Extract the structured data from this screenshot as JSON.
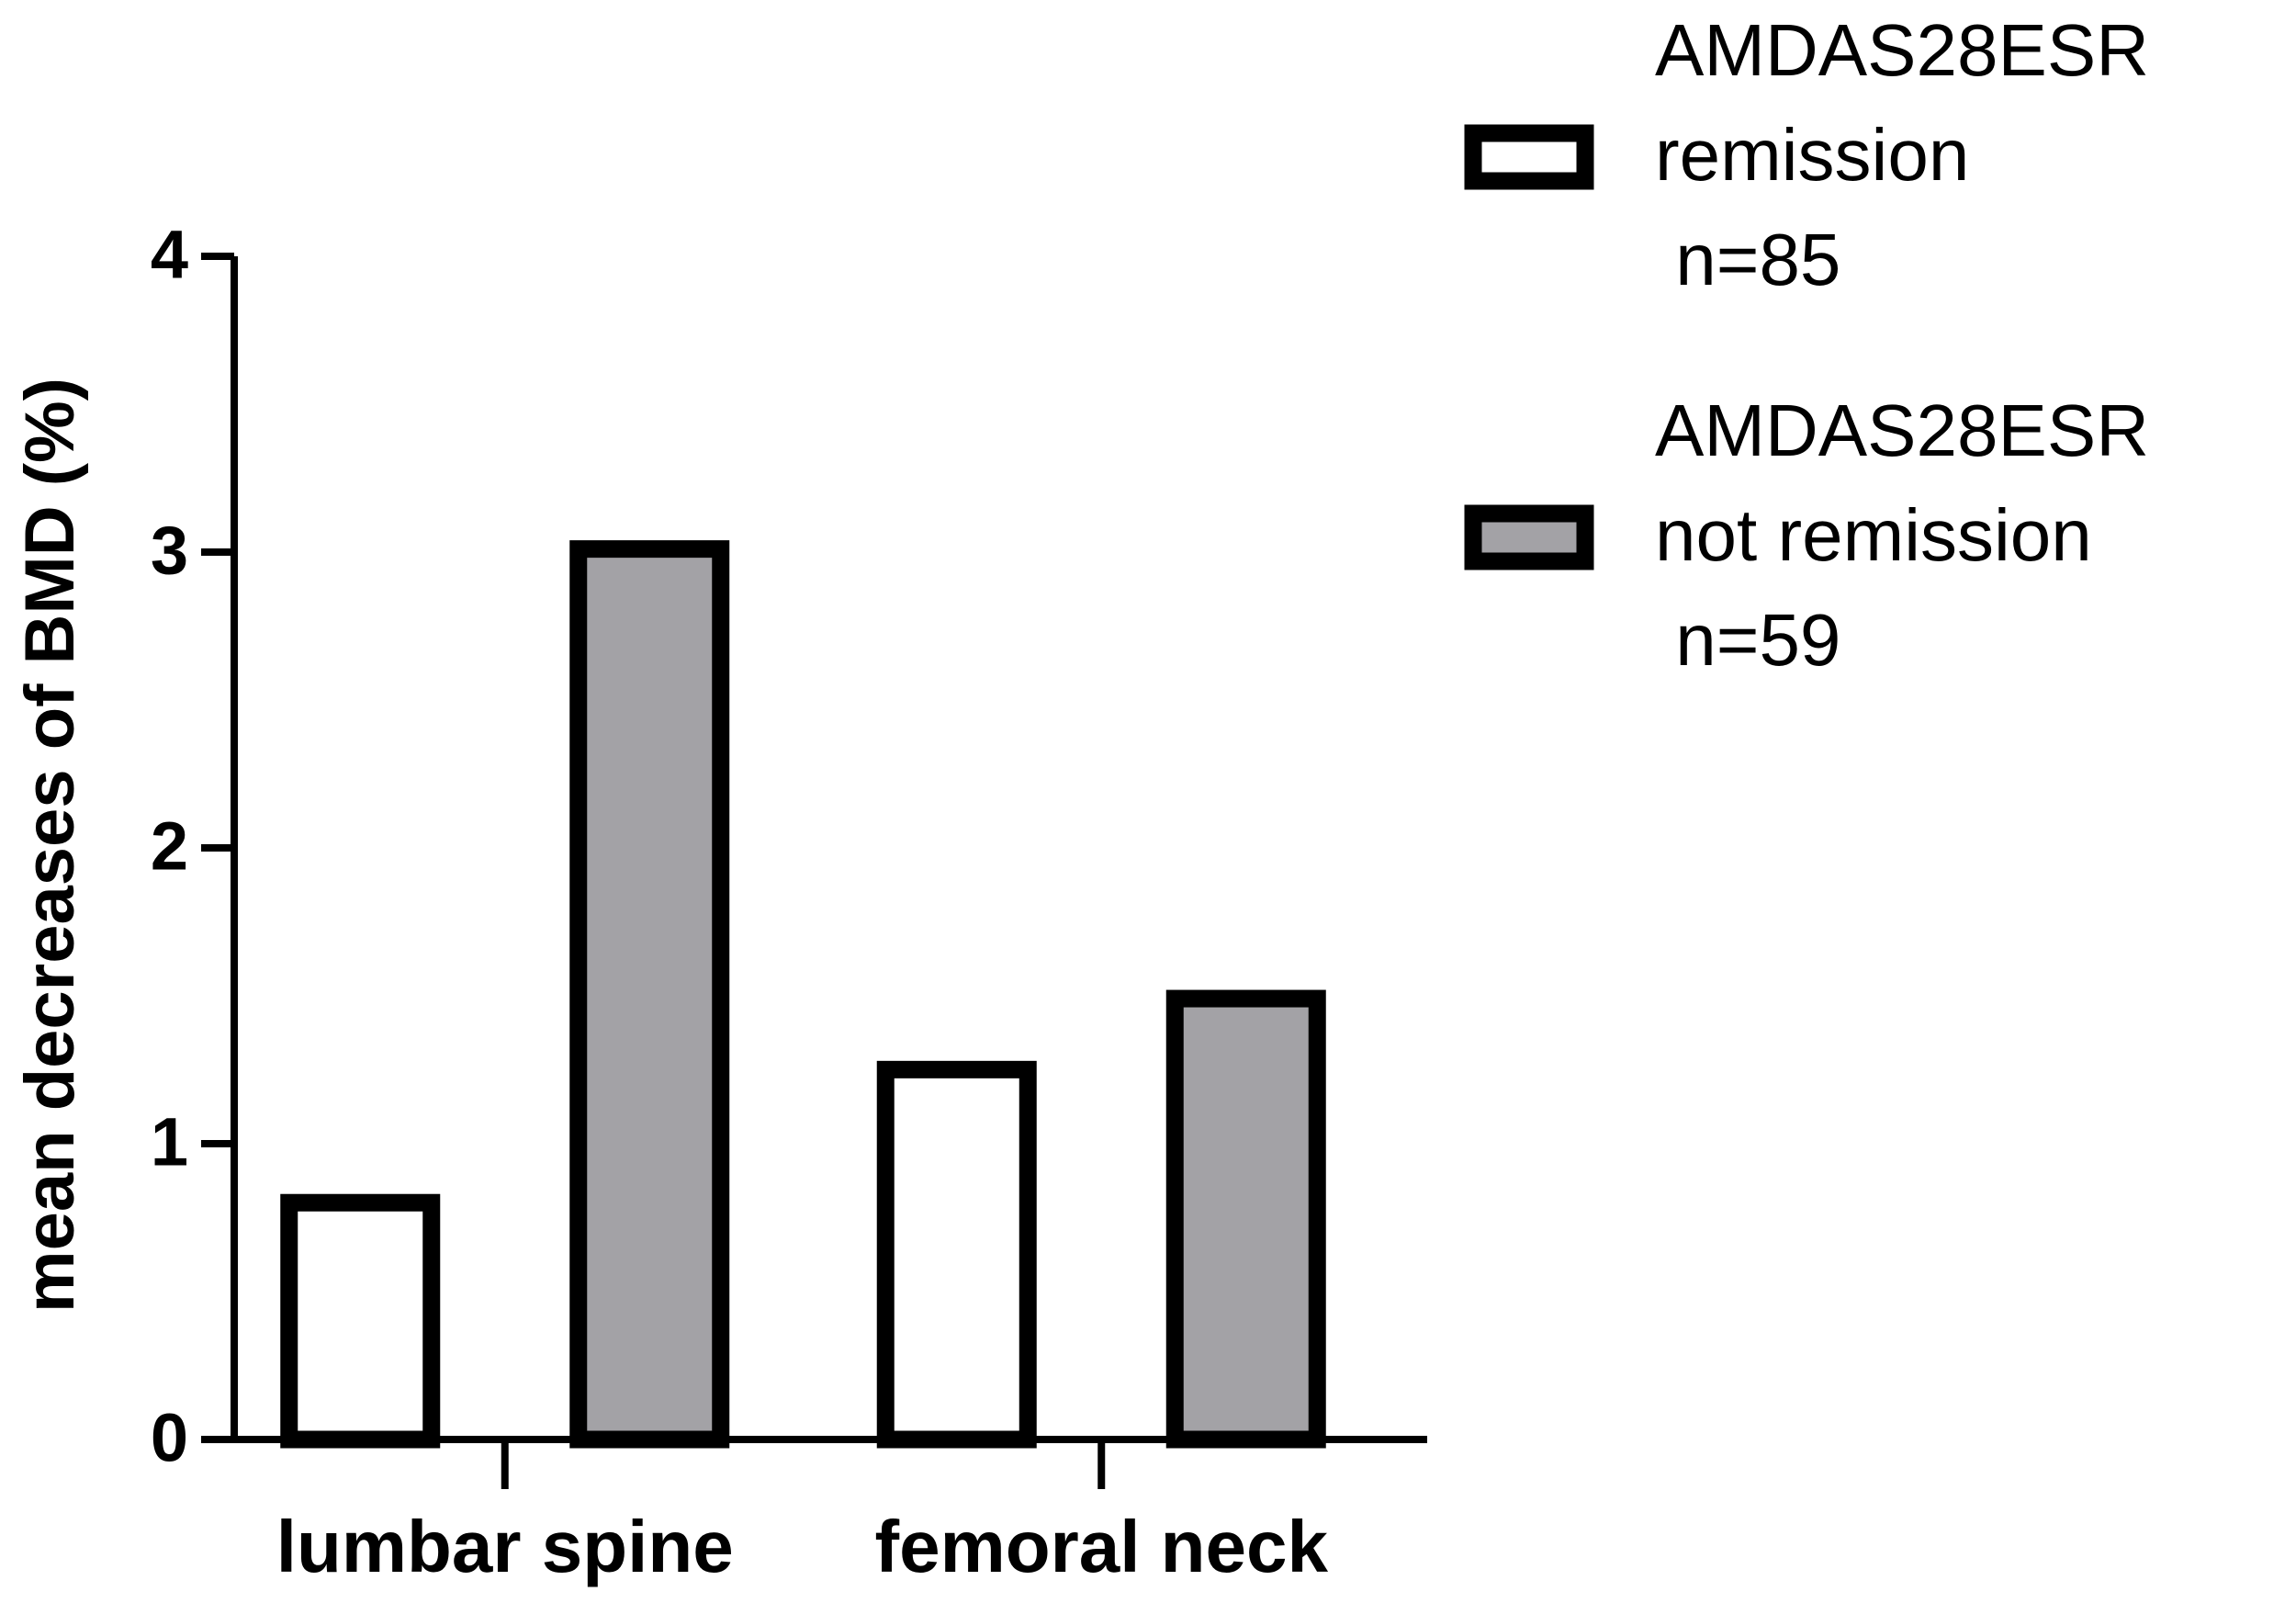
{
  "chart_data": {
    "type": "bar",
    "y_label": "mean decreases of BMD (%)",
    "categories": [
      "lumbar spine",
      "femoral neck"
    ],
    "series": [
      {
        "name": "AMDAS28ESR\nremission\n n=85",
        "color": "#ffffff",
        "values": [
          0.83,
          1.28
        ]
      },
      {
        "name": "AMDAS28ESR\nnot remission\n n=59",
        "color": "#a3a2a6",
        "values": [
          3.04,
          1.52
        ]
      }
    ],
    "ylim": [
      0,
      4
    ],
    "yticks": [
      0,
      1,
      2,
      3,
      4
    ],
    "grid": false,
    "legend": "right"
  }
}
